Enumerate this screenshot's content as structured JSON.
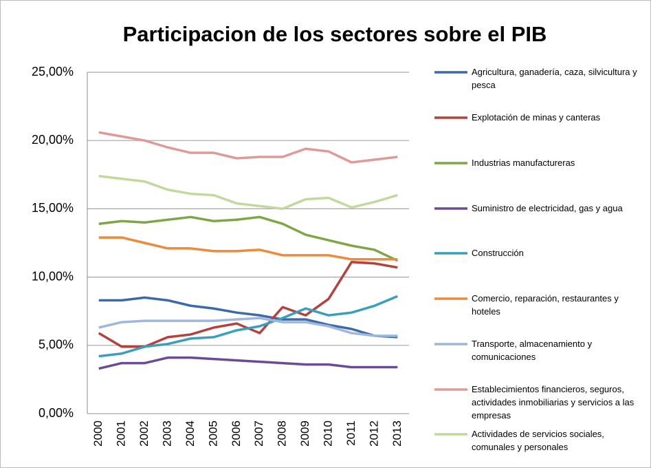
{
  "chart_data": {
    "type": "line",
    "title": "Participacion de los sectores sobre el PIB",
    "categories": [
      "2000",
      "2001",
      "2002",
      "2003",
      "2004",
      "2005",
      "2006",
      "2007",
      "2008",
      "2009",
      "2010",
      "2011",
      "2012",
      "2013"
    ],
    "series": [
      {
        "name": "Agricultura, ganadería, caza, silvicultura y pesca",
        "color": "#3c6aa8",
        "values": [
          8.3,
          8.3,
          8.5,
          8.3,
          7.9,
          7.7,
          7.4,
          7.2,
          6.9,
          6.9,
          6.5,
          6.2,
          5.7,
          5.6
        ]
      },
      {
        "name": "Explotación de minas y canteras",
        "color": "#b5403c",
        "values": [
          5.9,
          4.9,
          4.9,
          5.6,
          5.8,
          6.3,
          6.6,
          5.9,
          7.8,
          7.2,
          8.4,
          11.1,
          11.0,
          10.7
        ]
      },
      {
        "name": "Industrias manufactureras",
        "color": "#7ea645",
        "values": [
          13.9,
          14.1,
          14.0,
          14.2,
          14.4,
          14.1,
          14.2,
          14.4,
          13.9,
          13.1,
          12.7,
          12.3,
          12.0,
          11.2
        ]
      },
      {
        "name": "Suministro de electricidad, gas y agua",
        "color": "#6a4b94",
        "values": [
          3.3,
          3.7,
          3.7,
          4.1,
          4.1,
          4.0,
          3.9,
          3.8,
          3.7,
          3.6,
          3.6,
          3.4,
          3.4,
          3.4
        ]
      },
      {
        "name": "Construcción",
        "color": "#3a9fba",
        "values": [
          4.2,
          4.4,
          4.9,
          5.1,
          5.5,
          5.6,
          6.1,
          6.4,
          7.0,
          7.7,
          7.2,
          7.4,
          7.9,
          8.6
        ]
      },
      {
        "name": "Comercio, reparación, restaurantes y hoteles",
        "color": "#ee8a38",
        "values": [
          12.9,
          12.9,
          12.5,
          12.1,
          12.1,
          11.9,
          11.9,
          12.0,
          11.6,
          11.6,
          11.6,
          11.3,
          11.3,
          11.3
        ]
      },
      {
        "name": "Transporte, almacenamiento y comunicaciones",
        "color": "#9fb6dd",
        "values": [
          6.3,
          6.7,
          6.8,
          6.8,
          6.8,
          6.8,
          6.9,
          7.0,
          6.7,
          6.7,
          6.4,
          5.9,
          5.7,
          5.7
        ]
      },
      {
        "name": "Establecimientos financieros, seguros, actividades inmobiliarias y servicios a las empresas",
        "color": "#df9a98",
        "values": [
          20.6,
          20.3,
          20.0,
          19.5,
          19.1,
          19.1,
          18.7,
          18.8,
          18.8,
          19.4,
          19.2,
          18.4,
          18.6,
          18.8
        ]
      },
      {
        "name": "Actividades de servicios sociales, comunales y personales",
        "color": "#c2d99c",
        "values": [
          17.4,
          17.2,
          17.0,
          16.4,
          16.1,
          16.0,
          15.4,
          15.2,
          15.0,
          15.7,
          15.8,
          15.1,
          15.5,
          16.0
        ]
      }
    ],
    "ylim": [
      0,
      25
    ],
    "yticks": [
      {
        "value": 0,
        "label": "0,00%"
      },
      {
        "value": 5,
        "label": "5,00%"
      },
      {
        "value": 10,
        "label": "10,00%"
      },
      {
        "value": 15,
        "label": "15,00%"
      },
      {
        "value": 20,
        "label": "20,00%"
      },
      {
        "value": 25,
        "label": "25,00%"
      }
    ],
    "grid": true,
    "legend": "right"
  }
}
